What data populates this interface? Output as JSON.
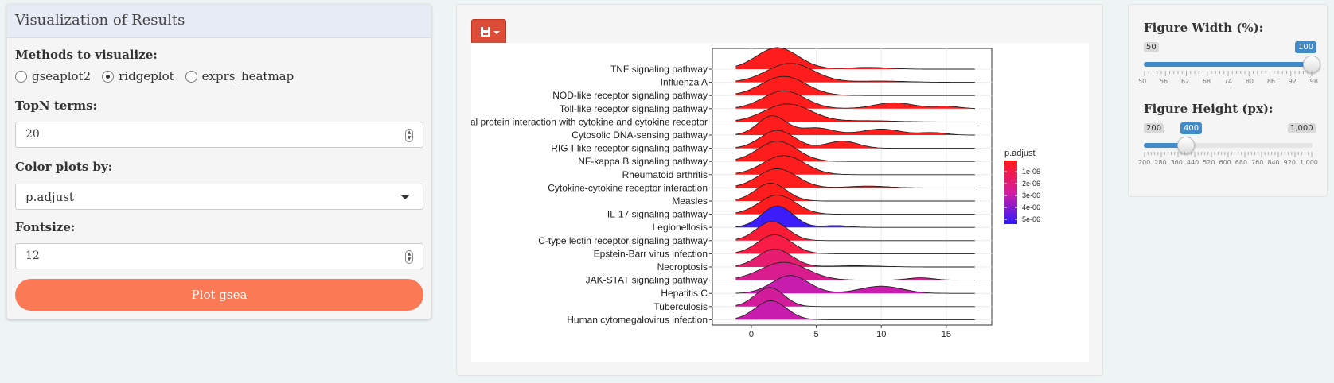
{
  "left_panel": {
    "title": "Visualization of Results",
    "methods_label": "Methods to visualize:",
    "methods": [
      "gseaplot2",
      "ridgeplot",
      "exprs_heatmap"
    ],
    "methods_selected": "ridgeplot",
    "topn_label": "TopN terms:",
    "topn_value": "20",
    "color_label": "Color plots by:",
    "color_value": "p.adjust",
    "fontsize_label": "Fontsize:",
    "fontsize_value": "12",
    "plot_button": "Plot gsea"
  },
  "right_panel": {
    "width_label": "Figure Width (%):",
    "width_min": "50",
    "width_max": "100",
    "width_value": "100",
    "width_ticks": [
      "50",
      "56",
      "62",
      "68",
      "74",
      "80",
      "86",
      "92",
      "98"
    ],
    "height_label": "Figure Height (px):",
    "height_min": "200",
    "height_max": "1,000",
    "height_value": "400",
    "height_ticks": [
      "200",
      "280",
      "360",
      "440",
      "520",
      "600",
      "680",
      "760",
      "840",
      "920",
      "1,000"
    ],
    "height_fraction": 0.25
  },
  "colors": {
    "accent": "#428bca",
    "plot_button": "#fb7a55",
    "save_button": "#dd4b39",
    "low_padj": "#ff1a1a",
    "high_padj": "#2f1aff"
  },
  "chart_data": {
    "type": "ridgeplot",
    "legend_title": "p.adjust",
    "legend_ticks": [
      "1e-06",
      "2e-06",
      "3e-06",
      "4e-06",
      "5e-06"
    ],
    "x_ticks": [
      0,
      5,
      10,
      15
    ],
    "xlim": [
      -3,
      18.5
    ],
    "terms": [
      {
        "name": "TNF signaling pathway",
        "color": "#fe1c1c",
        "peaks": [
          [
            2,
            1.8,
            1.6
          ],
          [
            9,
            0.15,
            1.5
          ]
        ]
      },
      {
        "name": "Influenza A",
        "color": "#fe1c1c",
        "peaks": [
          [
            3,
            1.6,
            1.8
          ],
          [
            10,
            0.1,
            2
          ]
        ]
      },
      {
        "name": "NOD-like receptor signaling pathway",
        "color": "#fe1c1c",
        "peaks": [
          [
            2.5,
            1.6,
            1.7
          ]
        ]
      },
      {
        "name": "Toll-like receptor signaling pathway",
        "color": "#fe1c1c",
        "peaks": [
          [
            2.5,
            1.5,
            1.6
          ],
          [
            11,
            0.5,
            1.5
          ],
          [
            15,
            0.2,
            1
          ]
        ]
      },
      {
        "name": "Viral protein interaction with cytokine and cytokine receptor",
        "color": "#fe1c1c",
        "peaks": [
          [
            2.8,
            1.5,
            1.8
          ],
          [
            9,
            0.1,
            2
          ]
        ]
      },
      {
        "name": "Cytosolic DNA-sensing pathway",
        "color": "#fe1c1c",
        "peaks": [
          [
            1.6,
            1.6,
            1.1
          ],
          [
            5,
            0.6,
            1.3
          ],
          [
            10,
            0.5,
            1.5
          ],
          [
            14,
            0.2,
            1
          ]
        ]
      },
      {
        "name": "RIG-I-like receptor signaling pathway",
        "color": "#fe1c1c",
        "peaks": [
          [
            2,
            1.5,
            1.3
          ],
          [
            7,
            0.6,
            1.2
          ]
        ]
      },
      {
        "name": "NF-kappa B signaling pathway",
        "color": "#fe1c1c",
        "peaks": [
          [
            2,
            1.7,
            1.5
          ]
        ]
      },
      {
        "name": "Rheumatoid arthritis",
        "color": "#fe1c1c",
        "peaks": [
          [
            2.5,
            1.6,
            1.6
          ]
        ]
      },
      {
        "name": "Cytokine-cytokine receptor interaction",
        "color": "#fe1c1c",
        "peaks": [
          [
            2,
            1.6,
            1.5
          ],
          [
            9,
            0.15,
            1.5
          ]
        ]
      },
      {
        "name": "Measles",
        "color": "#fe1c1c",
        "peaks": [
          [
            1.5,
            1.5,
            1.2
          ]
        ]
      },
      {
        "name": "IL-17 signaling pathway",
        "color": "#fe1c1c",
        "peaks": [
          [
            2,
            1.6,
            1.4
          ]
        ]
      },
      {
        "name": "Legionellosis",
        "color": "#3c1cf8",
        "peaks": [
          [
            2,
            1.8,
            1.2
          ],
          [
            6.5,
            0.15,
            1
          ]
        ]
      },
      {
        "name": "C-type lectin receptor signaling pathway",
        "color": "#fa1c36",
        "peaks": [
          [
            1.6,
            1.6,
            1.2
          ]
        ]
      },
      {
        "name": "Epstein-Barr virus infection",
        "color": "#f81c46",
        "peaks": [
          [
            1.8,
            1.6,
            1.3
          ]
        ]
      },
      {
        "name": "Necroptosis",
        "color": "#e81c6e",
        "peaks": [
          [
            1.8,
            1.5,
            1.3
          ],
          [
            8,
            0.1,
            2
          ]
        ]
      },
      {
        "name": "JAK-STAT signaling pathway",
        "color": "#d91c8e",
        "peaks": [
          [
            2.5,
            1.5,
            1.8
          ],
          [
            13,
            0.2,
            1
          ]
        ]
      },
      {
        "name": "Hepatitis C",
        "color": "#c81cae",
        "peaks": [
          [
            3,
            1.5,
            1.4
          ],
          [
            10,
            0.6,
            1.6
          ]
        ]
      },
      {
        "name": "Tuberculosis",
        "color": "#d21c9c",
        "peaks": [
          [
            1.4,
            1.6,
            1.1
          ]
        ]
      },
      {
        "name": "Human cytomegalovirus infection",
        "color": "#c81cae",
        "peaks": [
          [
            1.5,
            1.6,
            1.2
          ]
        ]
      }
    ]
  }
}
